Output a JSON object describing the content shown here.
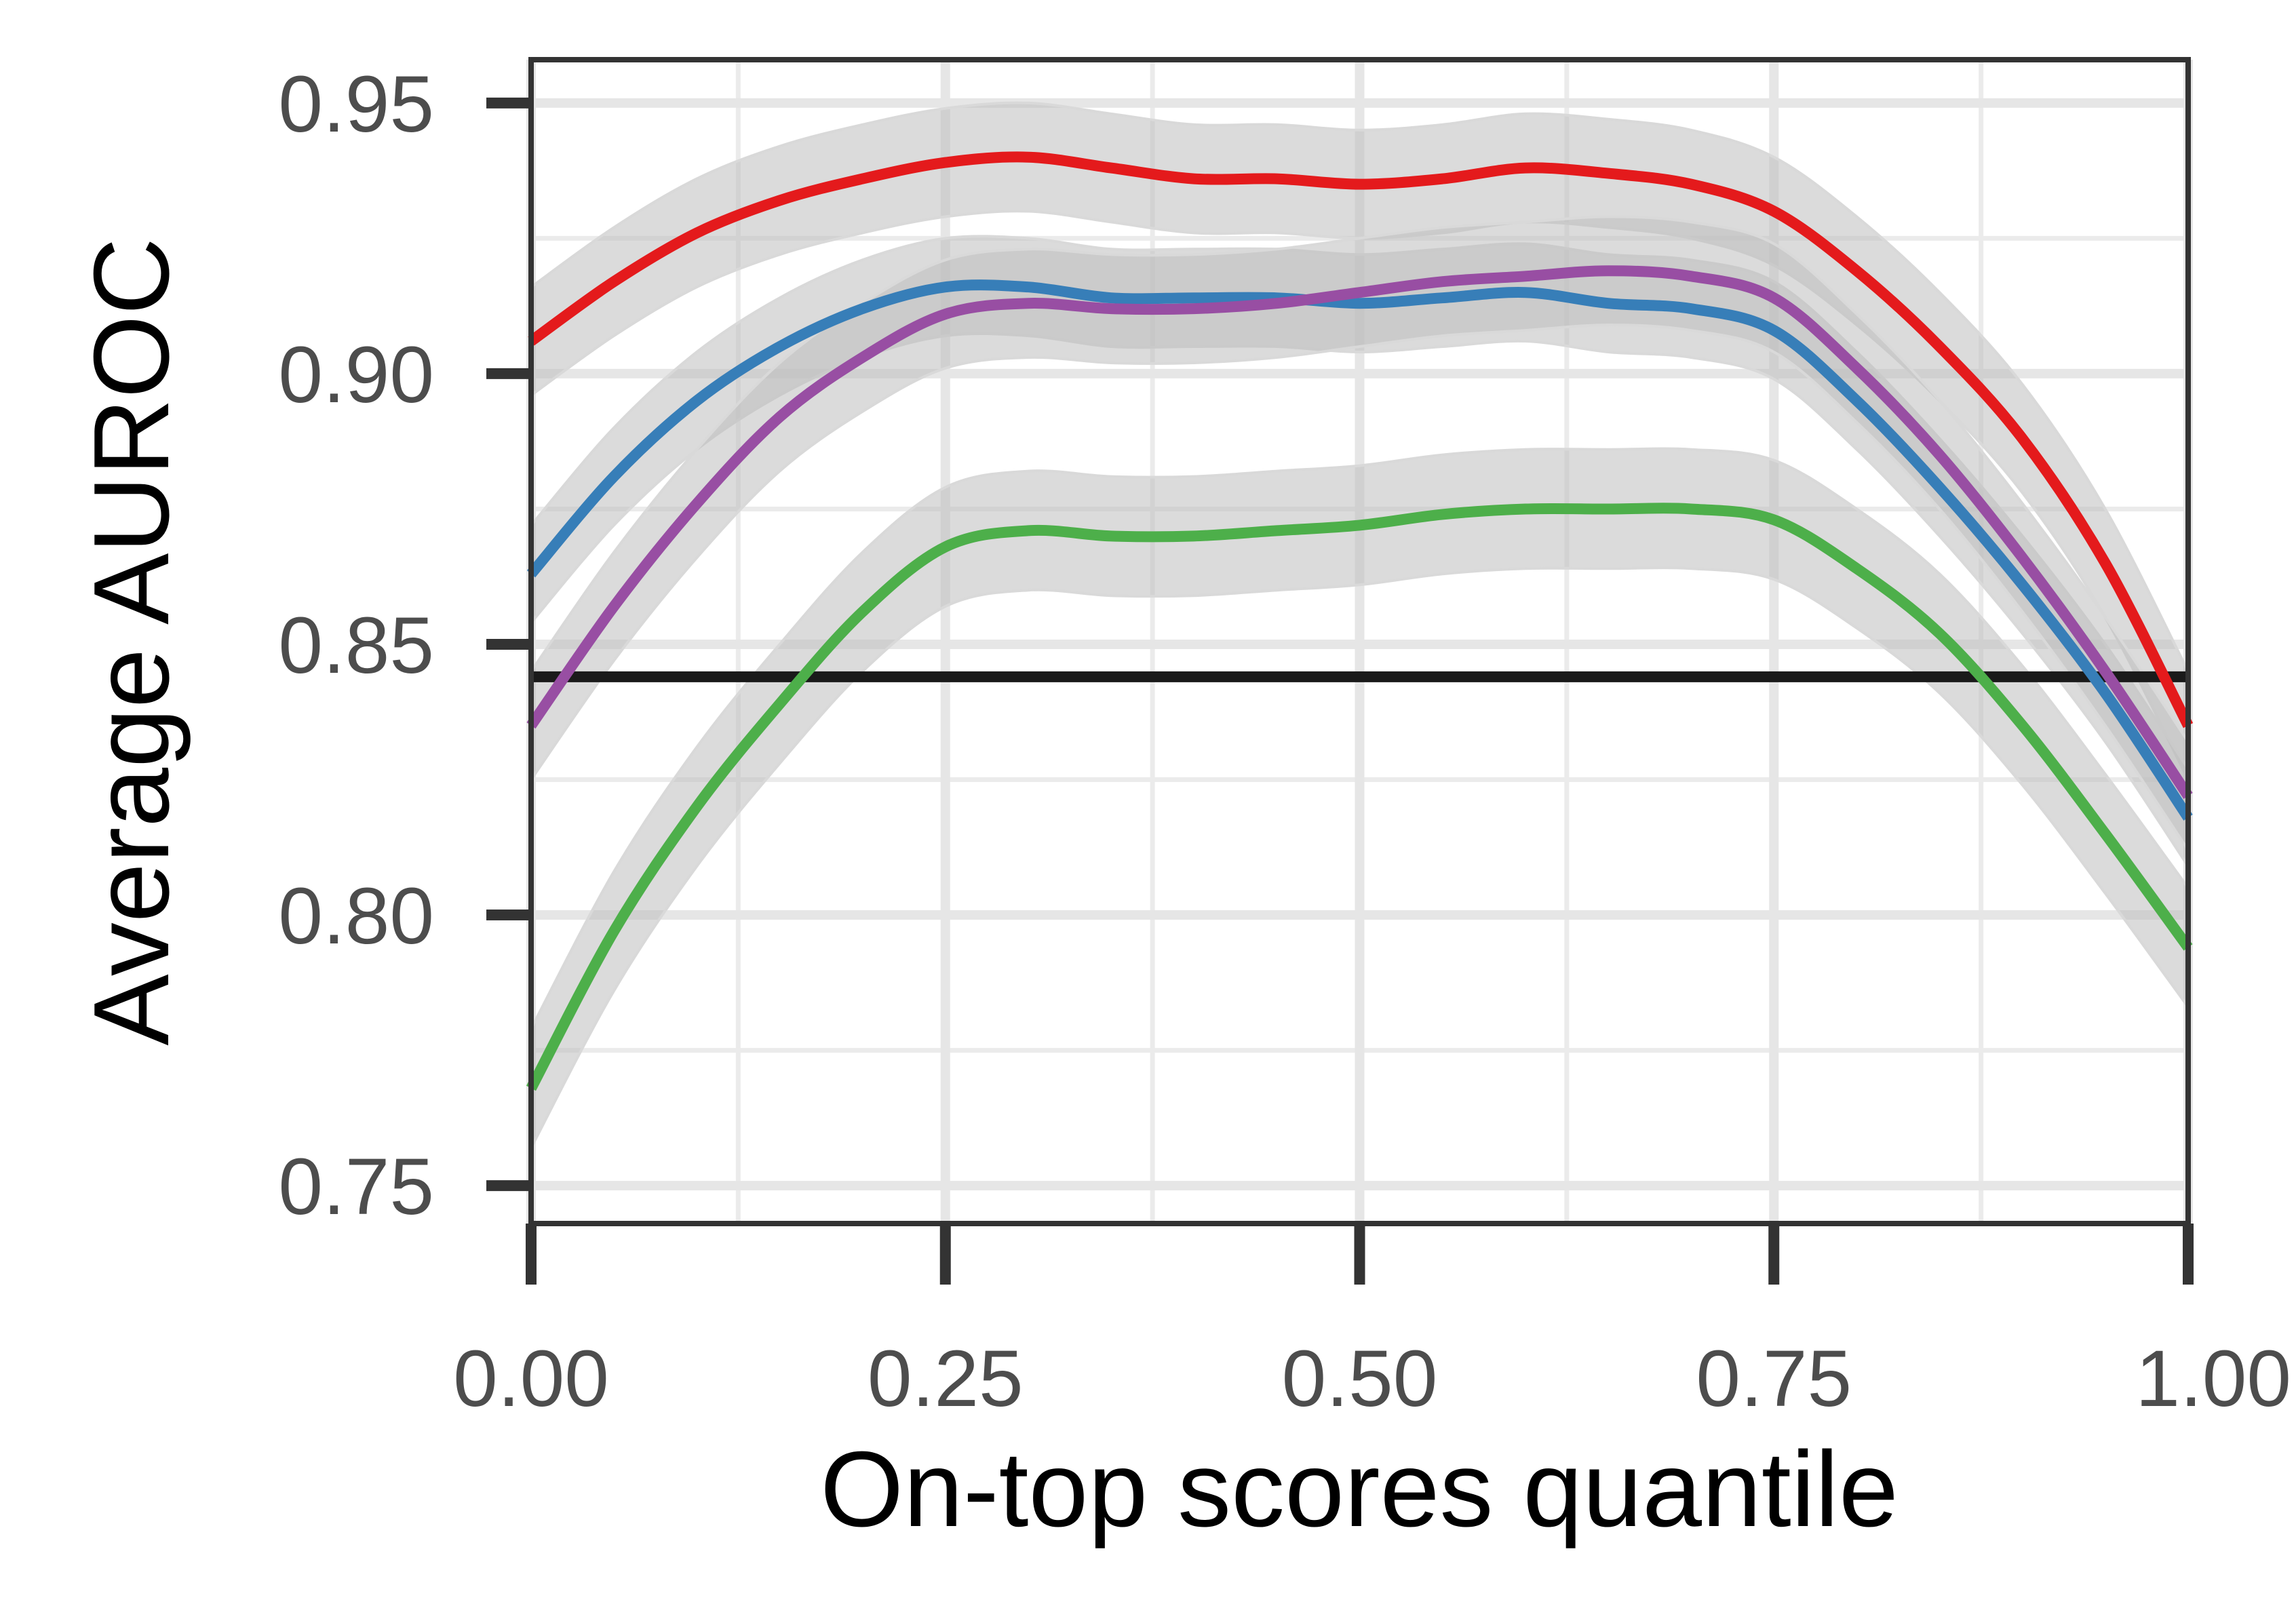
{
  "chart_data": {
    "type": "line",
    "title": "",
    "xlabel": "On-top scores quantile",
    "ylabel": "Average AUROC",
    "xlim": [
      0,
      1
    ],
    "ylim": [
      0.743,
      0.958
    ],
    "x_ticks": [
      0.0,
      0.25,
      0.5,
      0.75,
      1.0
    ],
    "x_tick_labels": [
      "0.00",
      "0.25",
      "0.50",
      "0.75",
      "1.00"
    ],
    "y_ticks": [
      0.75,
      0.8,
      0.85,
      0.9,
      0.95
    ],
    "y_tick_labels": [
      "0.75",
      "0.80",
      "0.85",
      "0.90",
      "0.95"
    ],
    "grid": true,
    "legend": "none",
    "reference_line": {
      "y": 0.844,
      "color": "#1a1a1a"
    },
    "confidence_band_color": "#bdbdbd",
    "x": [
      0,
      0.05,
      0.1,
      0.15,
      0.2,
      0.25,
      0.3,
      0.35,
      0.4,
      0.45,
      0.5,
      0.55,
      0.6,
      0.65,
      0.7,
      0.75,
      0.8,
      0.85,
      0.9,
      0.95,
      1.0
    ],
    "series": [
      {
        "color": "#e41a1c",
        "values": [
          0.906,
          0.917,
          0.926,
          0.932,
          0.936,
          0.939,
          0.94,
          0.938,
          0.936,
          0.936,
          0.935,
          0.936,
          0.938,
          0.937,
          0.935,
          0.93,
          0.919,
          0.905,
          0.888,
          0.865,
          0.835
        ],
        "band": 0.01
      },
      {
        "color": "#377eb8",
        "values": [
          0.863,
          0.881,
          0.895,
          0.905,
          0.912,
          0.916,
          0.916,
          0.914,
          0.914,
          0.914,
          0.913,
          0.914,
          0.915,
          0.913,
          0.912,
          0.908,
          0.895,
          0.879,
          0.861,
          0.841,
          0.818
        ],
        "band": 0.009
      },
      {
        "color": "#984ea3",
        "values": [
          0.835,
          0.857,
          0.876,
          0.892,
          0.903,
          0.911,
          0.913,
          0.912,
          0.912,
          0.913,
          0.915,
          0.917,
          0.918,
          0.919,
          0.918,
          0.914,
          0.901,
          0.885,
          0.866,
          0.845,
          0.822
        ],
        "band": 0.01
      },
      {
        "color": "#4daf4a",
        "values": [
          0.768,
          0.797,
          0.82,
          0.839,
          0.856,
          0.868,
          0.871,
          0.87,
          0.87,
          0.871,
          0.872,
          0.874,
          0.875,
          0.875,
          0.875,
          0.873,
          0.864,
          0.852,
          0.835,
          0.815,
          0.794
        ],
        "band": 0.011
      }
    ]
  }
}
